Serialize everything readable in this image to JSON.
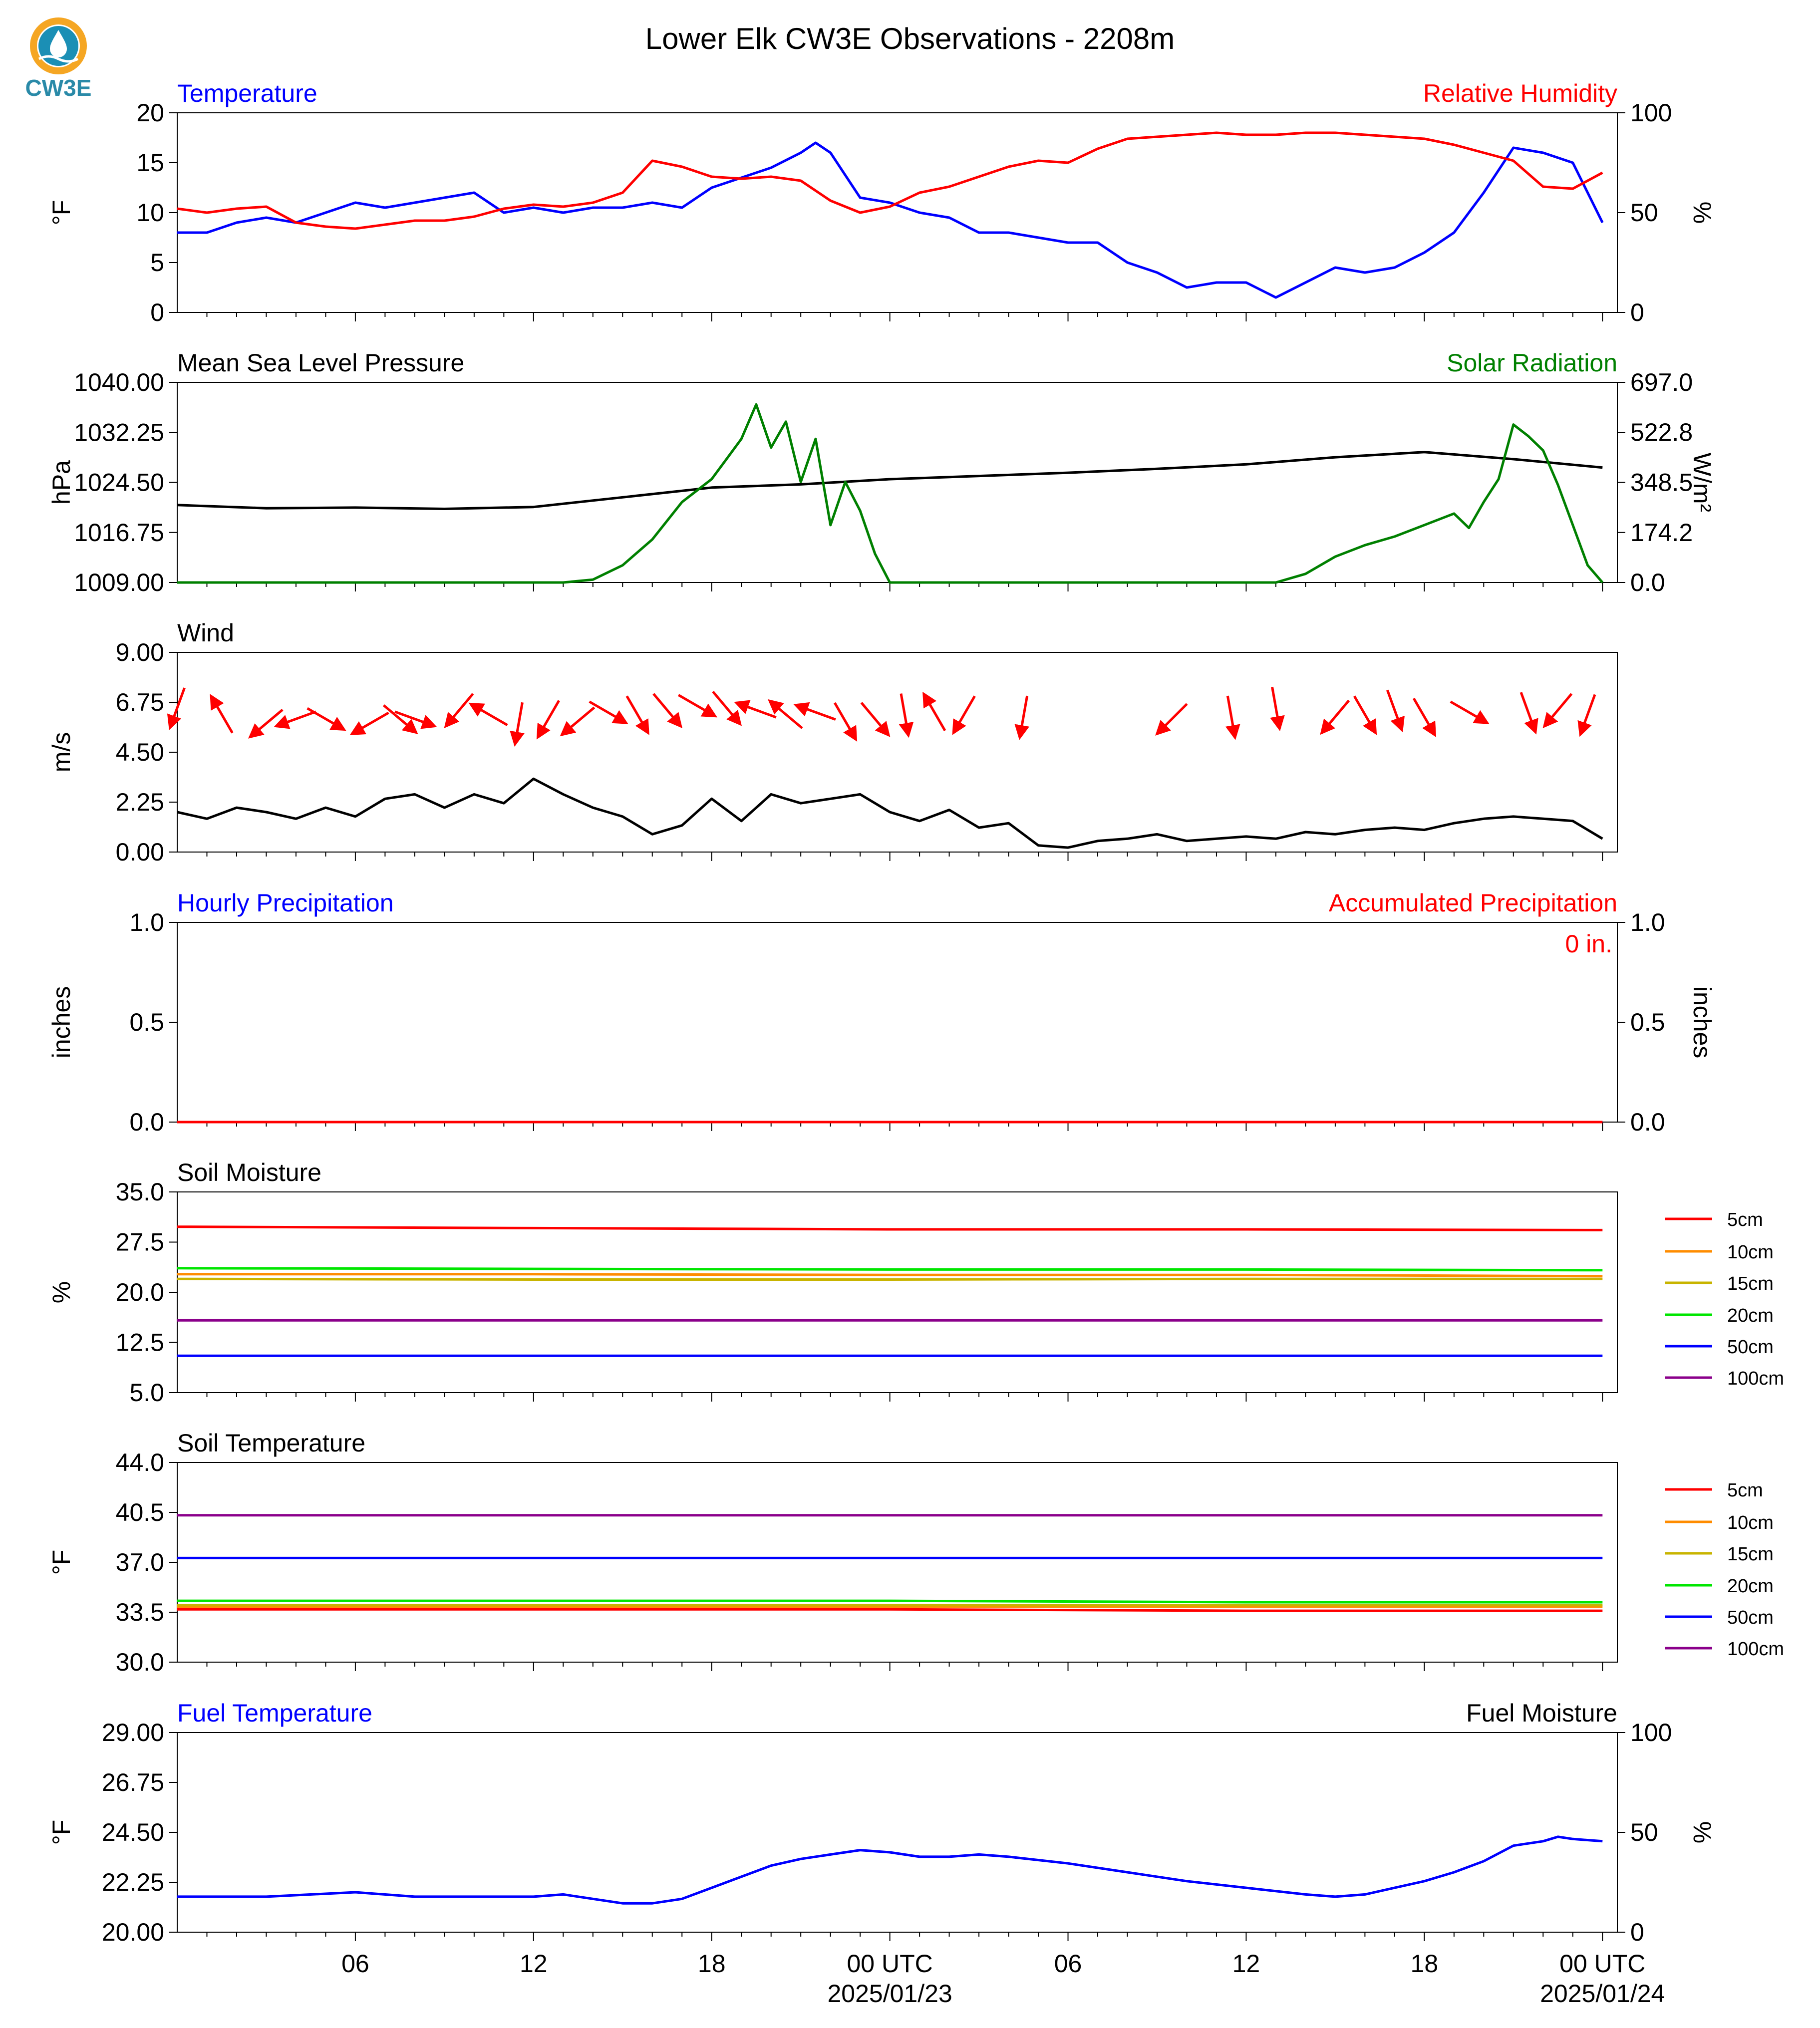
{
  "title": "Lower Elk CW3E Observations - 2208m",
  "logo": {
    "text": "CW3E",
    "colors": {
      "ring": "#f5a623",
      "drop": "#1b8fb5",
      "text": "#2a8aa8"
    }
  },
  "time_axis": {
    "ticks": [
      {
        "label": "06",
        "hour": 6
      },
      {
        "label": "12",
        "hour": 12
      },
      {
        "label": "18",
        "hour": 18
      },
      {
        "label": "00 UTC",
        "hour": 24,
        "date": "2025/01/23"
      },
      {
        "label": "06",
        "hour": 30
      },
      {
        "label": "12",
        "hour": 36
      },
      {
        "label": "18",
        "hour": 42
      },
      {
        "label": "00 UTC",
        "hour": 48,
        "date": "2025/01/24"
      }
    ]
  },
  "legend_labels": [
    "5cm",
    "10cm",
    "15cm",
    "20cm",
    "50cm",
    "100cm"
  ],
  "legend_colors": [
    "#ff0000",
    "#ff8c00",
    "#c8b400",
    "#00e600",
    "#0000ff",
    "#8b008b"
  ],
  "chart_data": [
    {
      "type": "line",
      "left_title": "Temperature",
      "right_title": "Relative Humidity",
      "ylabel": "°F",
      "ylabel_right": "%",
      "ylim": [
        0,
        20
      ],
      "ylim_right": [
        0,
        100
      ],
      "yticks": [
        "0",
        "5",
        "10",
        "15",
        "20"
      ],
      "yticks_right": [
        "0",
        "50",
        "100"
      ],
      "series": [
        {
          "name": "Temperature",
          "color": "#0000ff",
          "axis": "left",
          "x": [
            0,
            1,
            2,
            3,
            4,
            5,
            6,
            7,
            8,
            9,
            10,
            11,
            12,
            13,
            14,
            15,
            16,
            17,
            18,
            19,
            20,
            21,
            21.5,
            22,
            23,
            24,
            25,
            26,
            27,
            28,
            29,
            30,
            31,
            32,
            33,
            34,
            35,
            36,
            37,
            38,
            39,
            40,
            41,
            42,
            43,
            44,
            45,
            46,
            47,
            48
          ],
          "y": [
            8,
            8,
            9,
            9.5,
            9,
            10,
            11,
            10.5,
            11,
            11.5,
            12,
            10,
            10.5,
            10,
            10.5,
            10.5,
            11,
            10.5,
            12.5,
            13.5,
            14.5,
            16,
            17,
            16,
            11.5,
            11,
            10,
            9.5,
            8,
            8,
            7.5,
            7,
            7,
            5,
            4,
            2.5,
            3,
            3,
            1.5,
            3,
            4.5,
            4,
            4.5,
            6,
            8,
            12,
            16.5,
            16,
            15,
            9
          ]
        },
        {
          "name": "Relative Humidity",
          "color": "#ff0000",
          "axis": "right",
          "x": [
            0,
            1,
            2,
            3,
            4,
            5,
            6,
            7,
            8,
            9,
            10,
            11,
            12,
            13,
            14,
            15,
            16,
            17,
            18,
            19,
            20,
            21,
            22,
            23,
            24,
            25,
            26,
            27,
            28,
            29,
            30,
            31,
            32,
            33,
            34,
            35,
            36,
            37,
            38,
            39,
            40,
            41,
            42,
            43,
            44,
            45,
            46,
            47,
            48
          ],
          "y": [
            52,
            50,
            52,
            53,
            45,
            43,
            42,
            44,
            46,
            46,
            48,
            52,
            54,
            53,
            55,
            60,
            76,
            73,
            68,
            67,
            68,
            66,
            56,
            50,
            53,
            60,
            63,
            68,
            73,
            76,
            75,
            82,
            87,
            88,
            89,
            90,
            89,
            89,
            90,
            90,
            89,
            88,
            87,
            84,
            80,
            76,
            63,
            62,
            70
          ]
        }
      ]
    },
    {
      "type": "line",
      "left_title": "Mean Sea Level Pressure",
      "right_title": "Solar Radiation",
      "ylabel": "hPa",
      "ylabel_right": "W/m²",
      "ylim": [
        1009,
        1040
      ],
      "ylim_right": [
        0,
        697
      ],
      "yticks": [
        "1009.00",
        "1016.75",
        "1024.50",
        "1032.25",
        "1040.00"
      ],
      "yticks_right": [
        "0.0",
        "174.2",
        "348.5",
        "522.8",
        "697.0"
      ],
      "series": [
        {
          "name": "Mean Sea Level Pressure",
          "color": "#000000",
          "axis": "left",
          "x": [
            0,
            3,
            6,
            9,
            12,
            15,
            18,
            21,
            24,
            27,
            30,
            33,
            36,
            39,
            42,
            45,
            48
          ],
          "y": [
            1021,
            1020.5,
            1020.6,
            1020.4,
            1020.7,
            1022.2,
            1023.7,
            1024.2,
            1025,
            1025.5,
            1026,
            1026.6,
            1027.3,
            1028.4,
            1029.2,
            1028.1,
            1026.8
          ]
        },
        {
          "name": "Solar Radiation",
          "color": "#008000",
          "axis": "right",
          "x": [
            0,
            13,
            14,
            15,
            16,
            17,
            18,
            18.5,
            19,
            19.5,
            20,
            20.5,
            21,
            21.5,
            22,
            22.5,
            23,
            23.5,
            24,
            37,
            38,
            39,
            40,
            41,
            42,
            43,
            43.5,
            44,
            44.5,
            45,
            45.5,
            46,
            46.5,
            47,
            47.5,
            48
          ],
          "y": [
            0,
            0,
            10,
            60,
            150,
            280,
            360,
            430,
            500,
            620,
            470,
            560,
            350,
            500,
            200,
            350,
            250,
            100,
            0,
            0,
            30,
            90,
            130,
            160,
            200,
            240,
            190,
            280,
            360,
            550,
            510,
            460,
            340,
            200,
            60,
            0
          ]
        }
      ]
    },
    {
      "type": "line",
      "left_title": "Wind",
      "ylabel": "m/s",
      "ylim": [
        0,
        9
      ],
      "yticks": [
        "0.00",
        "2.25",
        "4.50",
        "6.75",
        "9.00"
      ],
      "series": [
        {
          "name": "Wind speed",
          "color": "#000000",
          "x": [
            0,
            1,
            2,
            3,
            4,
            5,
            6,
            7,
            8,
            9,
            10,
            11,
            12,
            13,
            14,
            15,
            16,
            17,
            18,
            19,
            20,
            21,
            22,
            23,
            24,
            25,
            26,
            27,
            28,
            29,
            30,
            31,
            32,
            33,
            34,
            35,
            36,
            37,
            38,
            39,
            40,
            41,
            42,
            43,
            44,
            45,
            46,
            47,
            48
          ],
          "y": [
            1.8,
            1.5,
            2,
            1.8,
            1.5,
            2,
            1.6,
            2.4,
            2.6,
            2,
            2.6,
            2.2,
            3.3,
            2.6,
            2,
            1.6,
            0.8,
            1.2,
            2.4,
            1.4,
            2.6,
            2.2,
            2.4,
            2.6,
            1.8,
            1.4,
            1.9,
            1.1,
            1.3,
            0.3,
            0.2,
            0.5,
            0.6,
            0.8,
            0.5,
            0.6,
            0.7,
            0.6,
            0.9,
            0.8,
            1,
            1.1,
            1,
            1.3,
            1.5,
            1.6,
            1.5,
            1.4,
            0.6
          ]
        }
      ],
      "wind_barbs": {
        "color": "#ff0000",
        "hours": [
          0,
          1.5,
          3,
          4,
          5,
          6.5,
          7.5,
          8,
          9.5,
          10.5,
          11.5,
          12.5,
          13.5,
          14.5,
          15.5,
          16.5,
          17.5,
          18.5,
          19.5,
          20.5,
          21.5,
          22.5,
          23.5,
          24.5,
          25.5,
          26.5,
          28.5,
          33.5,
          35.5,
          37,
          39,
          40,
          41,
          42,
          43.5,
          45.5,
          46.5,
          47.5
        ],
        "speeds": [
          6.5,
          6.2,
          5.8,
          6.0,
          6.0,
          5.8,
          6.0,
          6.0,
          6.4,
          6.2,
          5.8,
          6.0,
          5.9,
          6.3,
          6.2,
          6.4,
          6.6,
          6.5,
          6.4,
          6.2,
          6.3,
          5.9,
          6.0,
          6.2,
          6.3,
          6.2,
          6.1,
          6.0,
          6.1,
          6.5,
          6.1,
          6.2,
          6.4,
          6.1,
          6.3,
          6.3,
          6.4,
          6.2
        ],
        "directions_deg": [
          250,
          120,
          220,
          200,
          330,
          210,
          320,
          340,
          230,
          150,
          260,
          240,
          220,
          330,
          300,
          310,
          330,
          310,
          160,
          140,
          160,
          300,
          310,
          280,
          120,
          240,
          260,
          225,
          280,
          280,
          230,
          300,
          290,
          300,
          330,
          290,
          230,
          250
        ]
      }
    },
    {
      "type": "line",
      "left_title": "Hourly Precipitation",
      "right_title": "Accumulated Precipitation",
      "ylabel": "inches",
      "ylabel_right": "inches",
      "ylim": [
        0,
        1
      ],
      "ylim_right": [
        0,
        1
      ],
      "yticks": [
        "0.0",
        "0.5",
        "1.0"
      ],
      "yticks_right": [
        "0.0",
        "0.5",
        "1.0"
      ],
      "annotation": "0 in.",
      "series": [
        {
          "name": "Hourly Precipitation",
          "color": "#0000ff",
          "x": [
            0,
            48
          ],
          "y": [
            0,
            0
          ]
        },
        {
          "name": "Accumulated Precipitation",
          "color": "#ff0000",
          "x": [
            0,
            48
          ],
          "y": [
            0,
            0
          ]
        }
      ]
    },
    {
      "type": "line",
      "left_title": "Soil Moisture",
      "ylabel": "%",
      "ylim": [
        5,
        35
      ],
      "yticks": [
        "5.0",
        "12.5",
        "20.0",
        "27.5",
        "35.0"
      ],
      "series": [
        {
          "name": "5cm",
          "color": "#ff0000",
          "x": [
            0,
            12,
            24,
            36,
            48
          ],
          "y": [
            29.8,
            29.6,
            29.4,
            29.4,
            29.3
          ]
        },
        {
          "name": "10cm",
          "color": "#ff8c00",
          "x": [
            0,
            12,
            24,
            36,
            48
          ],
          "y": [
            22.7,
            22.7,
            22.6,
            22.6,
            22.4
          ]
        },
        {
          "name": "15cm",
          "color": "#c8b400",
          "x": [
            0,
            12,
            24,
            36,
            48
          ],
          "y": [
            22.0,
            21.9,
            21.9,
            22.0,
            22.0
          ]
        },
        {
          "name": "20cm",
          "color": "#00e600",
          "x": [
            0,
            12,
            24,
            36,
            48
          ],
          "y": [
            23.6,
            23.5,
            23.4,
            23.4,
            23.3
          ]
        },
        {
          "name": "50cm",
          "color": "#0000ff",
          "x": [
            0,
            12,
            24,
            36,
            48
          ],
          "y": [
            10.5,
            10.5,
            10.5,
            10.5,
            10.5
          ]
        },
        {
          "name": "100cm",
          "color": "#8b008b",
          "x": [
            0,
            12,
            24,
            36,
            48
          ],
          "y": [
            15.8,
            15.8,
            15.8,
            15.8,
            15.8
          ]
        }
      ]
    },
    {
      "type": "line",
      "left_title": "Soil Temperature",
      "ylabel": "°F",
      "ylim": [
        30,
        44
      ],
      "yticks": [
        "30.0",
        "33.5",
        "37.0",
        "40.5",
        "44.0"
      ],
      "series": [
        {
          "name": "5cm",
          "color": "#ff0000",
          "x": [
            0,
            12,
            24,
            36,
            48
          ],
          "y": [
            33.7,
            33.7,
            33.7,
            33.6,
            33.6
          ]
        },
        {
          "name": "10cm",
          "color": "#ff8c00",
          "x": [
            0,
            12,
            24,
            36,
            48
          ],
          "y": [
            33.9,
            33.9,
            33.9,
            33.9,
            33.9
          ]
        },
        {
          "name": "15cm",
          "color": "#c8b400",
          "x": [
            0,
            12,
            24,
            36,
            48
          ],
          "y": [
            34.0,
            34.0,
            34.0,
            34.0,
            34.0
          ]
        },
        {
          "name": "20cm",
          "color": "#00e600",
          "x": [
            0,
            12,
            24,
            36,
            48
          ],
          "y": [
            34.3,
            34.3,
            34.3,
            34.2,
            34.2
          ]
        },
        {
          "name": "50cm",
          "color": "#0000ff",
          "x": [
            0,
            12,
            24,
            36,
            48
          ],
          "y": [
            37.3,
            37.3,
            37.3,
            37.3,
            37.3
          ]
        },
        {
          "name": "100cm",
          "color": "#8b008b",
          "x": [
            0,
            12,
            24,
            36,
            48
          ],
          "y": [
            40.3,
            40.3,
            40.3,
            40.3,
            40.3
          ]
        }
      ]
    },
    {
      "type": "line",
      "left_title": "Fuel Temperature",
      "right_title": "Fuel Moisture",
      "ylabel": "°F",
      "ylabel_right": "%",
      "ylim": [
        20,
        29
      ],
      "ylim_right": [
        0,
        100
      ],
      "yticks": [
        "20.00",
        "22.25",
        "24.50",
        "26.75",
        "29.00"
      ],
      "yticks_right": [
        "0",
        "50",
        "100"
      ],
      "series": [
        {
          "name": "Fuel Temperature",
          "color": "#0000ff",
          "x": [
            0,
            3,
            6,
            8,
            10,
            12,
            13,
            14,
            15,
            16,
            17,
            18,
            19,
            20,
            21,
            22,
            23,
            24,
            25,
            26,
            27,
            28,
            30,
            32,
            34,
            36,
            38,
            39,
            40,
            41,
            42,
            43,
            44,
            45,
            46,
            46.5,
            47,
            48
          ],
          "y": [
            21.6,
            21.6,
            21.8,
            21.6,
            21.6,
            21.6,
            21.7,
            21.5,
            21.3,
            21.3,
            21.5,
            22.0,
            22.5,
            23.0,
            23.3,
            23.5,
            23.7,
            23.6,
            23.4,
            23.4,
            23.5,
            23.4,
            23.1,
            22.7,
            22.3,
            22.0,
            21.7,
            21.6,
            21.7,
            22.0,
            22.3,
            22.7,
            23.2,
            23.9,
            24.1,
            24.3,
            24.2,
            24.1
          ]
        }
      ]
    }
  ]
}
